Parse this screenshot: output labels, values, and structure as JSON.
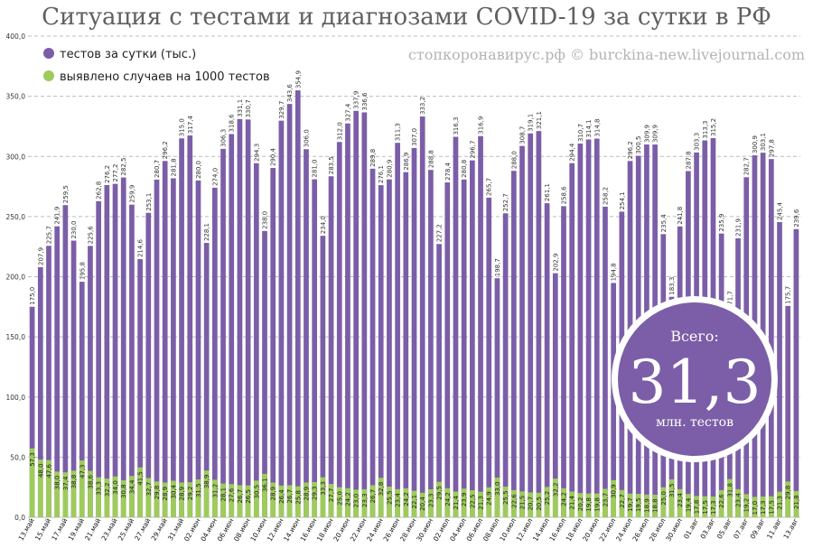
{
  "title": "Ситуация с тестами и диагнозами COVID-19 за сутки в РФ",
  "watermark": "стопкоронавирус.рф © burckina-new.livejournal.com",
  "legend": [
    {
      "label": "тестов за сутки (тыс.)",
      "color": "#7b5ea7"
    },
    {
      "label": "выявлено случаев на 1000 тестов",
      "color": "#9ecb5c"
    }
  ],
  "total": {
    "caption": "Всего:",
    "value": "31,3",
    "unit": "млн. тестов",
    "color": "#7b5ea7"
  },
  "chart_data": {
    "type": "bar",
    "stacked": "overlay",
    "ylim": [
      0,
      400
    ],
    "yticks": [
      "0,0",
      "50,0",
      "100,0",
      "150,0",
      "200,0",
      "250,0",
      "300,0",
      "350,0",
      "400,0"
    ],
    "grid": true,
    "legend_position": "top-left",
    "x_tick_labels": [
      "13.май",
      "15.май",
      "17.май",
      "19.май",
      "21.май",
      "23.май",
      "25.май",
      "27.май",
      "29.май",
      "31.май",
      "02.июн",
      "04.июн",
      "06.июн",
      "08.июн",
      "10.июн",
      "12.июн",
      "14.июн",
      "16.июн",
      "18.июн",
      "20.июн",
      "22.июн",
      "24.июн",
      "26.июн",
      "28.июн",
      "30.июн",
      "02.июл",
      "04.июл",
      "06.июл",
      "08.июл",
      "10.июл",
      "12.июл",
      "14.июл",
      "16.июл",
      "18.июл",
      "20.июл",
      "22.июл",
      "24.июл",
      "26.июл",
      "28.июл",
      "30.июл",
      "01.авг",
      "03.авг",
      "05.авг",
      "07.авг",
      "09.авг",
      "11.авг",
      "13.авг"
    ],
    "series": [
      {
        "name": "тестов за сутки (тыс.)",
        "color": "#7b5ea7",
        "values": [
          175.0,
          207.9,
          225.7,
          241.9,
          259.5,
          230.0,
          195.8,
          225.6,
          262.8,
          276.2,
          277.2,
          282.5,
          259.9,
          214.6,
          253.1,
          280.7,
          296.2,
          281.8,
          315.0,
          317.4,
          280.0,
          228.1,
          274.0,
          306.3,
          318.6,
          331.1,
          330.7,
          294.3,
          238.0,
          290.4,
          329.7,
          343.6,
          354.9,
          306.0,
          281.0,
          234.0,
          283.5,
          312.0,
          327.4,
          337.9,
          336.6,
          289.8,
          276.1,
          280.9,
          311.3,
          286.9,
          307.0,
          333.2,
          288.8,
          227.2,
          278.4,
          316.3,
          280.8,
          296.7,
          316.9,
          265.7,
          198.7,
          252.7,
          288.0,
          308.7,
          319.1,
          321.1,
          261.1,
          202.9,
          258.6,
          294.4,
          310.7,
          314.1,
          314.8,
          258.2,
          194.8,
          254.1,
          296.2,
          300.5,
          309.9,
          309.9,
          235.4,
          183.3,
          241.8,
          287.8,
          303.3,
          313.3,
          315.2,
          235.9,
          171.7,
          231.9,
          282.7,
          300.9,
          303.1,
          297.8,
          245.4,
          175.7,
          239.6
        ]
      },
      {
        "name": "выявлено случаев на 1000 тестов",
        "color": "#9ecb5c",
        "values": [
          57.3,
          48.0,
          47.6,
          38.0,
          37.4,
          38.8,
          47.3,
          38.6,
          33.3,
          32.2,
          34.0,
          30.8,
          34.4,
          41.5,
          32.7,
          29.8,
          28.9,
          30.4,
          28.9,
          29.2,
          31.5,
          38.9,
          31.2,
          28.1,
          27.6,
          26.7,
          26.5,
          30.5,
          36.1,
          28.9,
          26.4,
          26.7,
          25.8,
          28.9,
          29.3,
          33.3,
          27.7,
          25.0,
          24.2,
          23.0,
          23.3,
          26.7,
          32.8,
          25.5,
          23.4,
          24.2,
          22.1,
          20.4,
          23.3,
          29.5,
          24.2,
          21.4,
          23.9,
          22.5,
          21.3,
          24.9,
          33.0,
          25.5,
          22.6,
          21.5,
          20.7,
          20.5,
          25.2,
          32.2,
          24.2,
          21.4,
          20.2,
          19.8,
          19.8,
          23.7,
          30.9,
          22.7,
          19.7,
          19.5,
          18.9,
          18.8,
          25.0,
          31.5,
          23.4,
          19.4,
          17.8,
          17.5,
          17.3,
          22.6,
          31.8,
          23.4,
          19.2,
          17.0,
          17.3,
          17.5,
          21.3,
          29.8,
          21.8
        ]
      }
    ]
  }
}
